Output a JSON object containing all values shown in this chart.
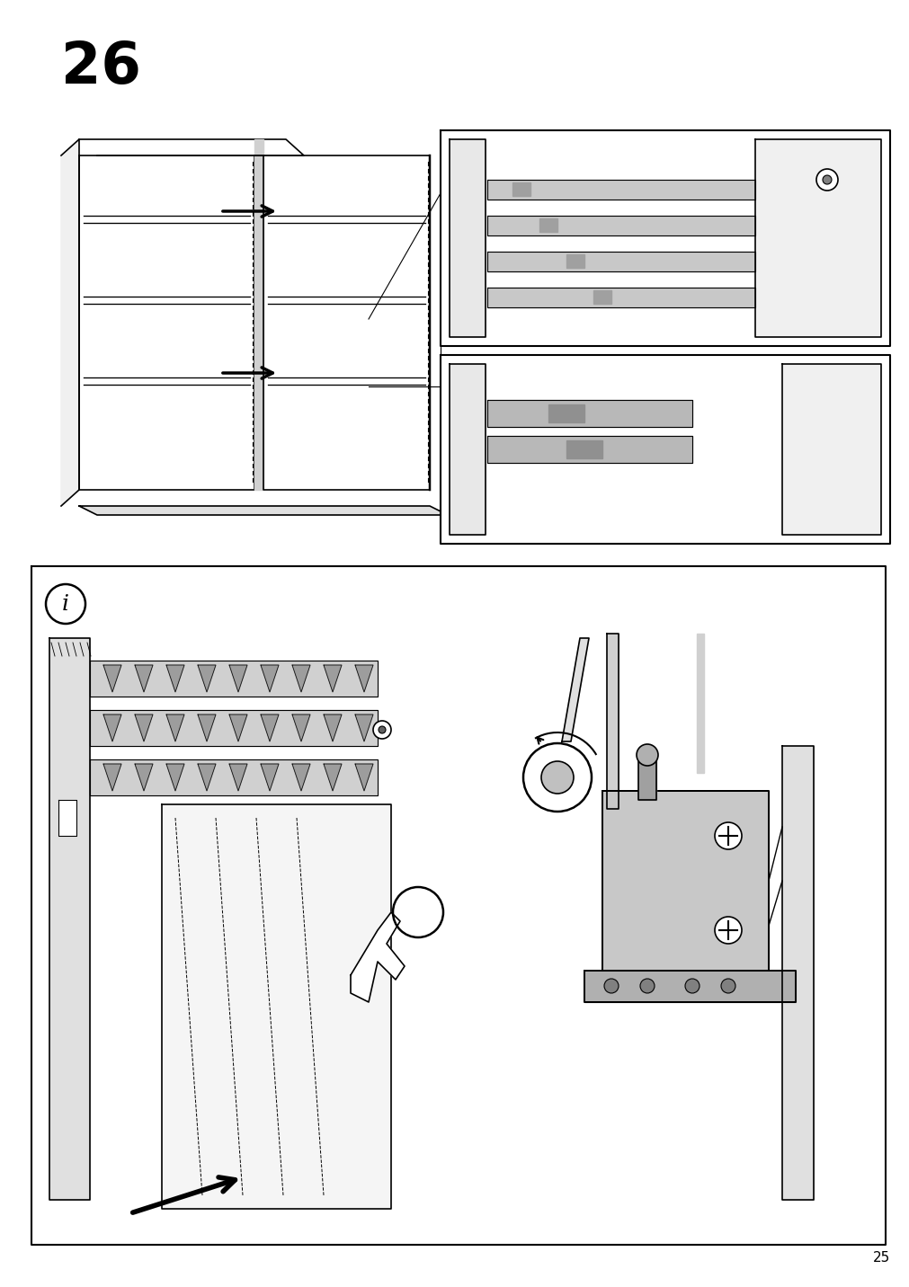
{
  "page_number": "25",
  "step_number": "26",
  "background_color": "#ffffff",
  "line_color": "#000000",
  "fig_width": 10.12,
  "fig_height": 14.32,
  "dpi": 100
}
